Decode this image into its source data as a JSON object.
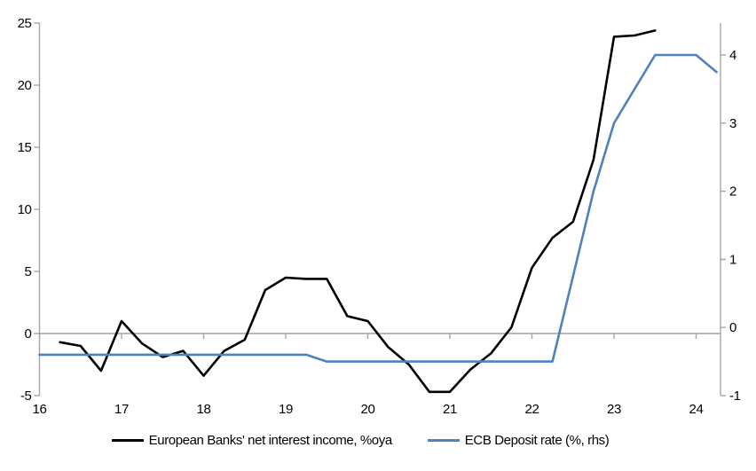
{
  "chart_data": {
    "type": "line",
    "title": "",
    "legend_position": "bottom",
    "grid": false,
    "x_axis": {
      "tick_values": [
        16,
        17,
        18,
        19,
        20,
        21,
        22,
        23,
        24
      ],
      "tick_labels": [
        "16",
        "17",
        "18",
        "19",
        "20",
        "21",
        "22",
        "23",
        "24"
      ],
      "min": 16,
      "max": 24.33
    },
    "left_axis": {
      "tick_values": [
        25,
        20,
        15,
        10,
        5,
        0,
        -5
      ],
      "tick_labels": [
        "25",
        "20",
        "15",
        "10",
        "5",
        "0",
        "-5"
      ],
      "min": -5,
      "max": 25
    },
    "right_axis": {
      "tick_values": [
        4,
        3,
        2,
        1,
        0,
        -1
      ],
      "tick_labels": [
        "4",
        "3",
        "2",
        "1",
        "0",
        "-1"
      ],
      "min": -1,
      "max": 4.47
    },
    "series": [
      {
        "name": "European Banks' net interest income, %oya",
        "axis": "left",
        "color": "#000000",
        "x": [
          16.25,
          16.5,
          16.75,
          17.0,
          17.25,
          17.5,
          17.75,
          18.0,
          18.25,
          18.5,
          18.75,
          19.0,
          19.25,
          19.5,
          19.75,
          20.0,
          20.25,
          20.5,
          20.75,
          21.0,
          21.25,
          21.5,
          21.75,
          22.0,
          22.25,
          22.5,
          22.75,
          23.0,
          23.25,
          23.5
        ],
        "values": [
          -0.7,
          -1.0,
          -3.0,
          1.0,
          -0.8,
          -1.9,
          -1.4,
          -3.4,
          -1.4,
          -0.5,
          3.5,
          4.5,
          4.4,
          4.4,
          1.4,
          1.0,
          -1.1,
          -2.5,
          -4.7,
          -4.7,
          -2.9,
          -1.6,
          0.5,
          5.3,
          7.7,
          9.0,
          14.0,
          23.9,
          24.0,
          24.4
        ]
      },
      {
        "name": "ECB Deposit rate (%, rhs)",
        "axis": "right",
        "color": "#4f81bd",
        "x": [
          16.0,
          16.25,
          16.5,
          16.75,
          17.0,
          17.25,
          17.5,
          17.75,
          18.0,
          18.25,
          18.5,
          18.75,
          19.0,
          19.25,
          19.5,
          19.75,
          20.0,
          20.25,
          20.5,
          20.75,
          21.0,
          21.25,
          21.5,
          21.75,
          22.0,
          22.25,
          22.5,
          22.75,
          23.0,
          23.25,
          23.5,
          23.75,
          24.0,
          24.25
        ],
        "values": [
          -0.4,
          -0.4,
          -0.4,
          -0.4,
          -0.4,
          -0.4,
          -0.4,
          -0.4,
          -0.4,
          -0.4,
          -0.4,
          -0.4,
          -0.4,
          -0.4,
          -0.5,
          -0.5,
          -0.5,
          -0.5,
          -0.5,
          -0.5,
          -0.5,
          -0.5,
          -0.5,
          -0.5,
          -0.5,
          -0.5,
          0.75,
          2.0,
          3.0,
          3.5,
          4.0,
          4.0,
          4.0,
          3.75
        ]
      }
    ]
  },
  "colors": {
    "axis_line": "#a6a6a6",
    "zero_line": "#a0a0a0",
    "series_black": "#000000",
    "series_blue": "#4f81bd",
    "text": "#000000"
  }
}
